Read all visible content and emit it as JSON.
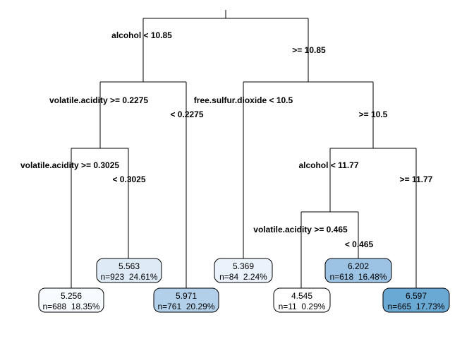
{
  "splits": {
    "root_left": "alcohol < 10.85",
    "root_right": ">= 10.85",
    "va1_left": "volatile.acidity >= 0.2275",
    "va1_right": "< 0.2275",
    "va2_left": "volatile.acidity >= 0.3025",
    "va2_right": "< 0.3025",
    "fsd_left": "free.sulfur.dioxide < 10.5",
    "fsd_right": ">= 10.5",
    "alc2_left": "alcohol < 11.77",
    "alc2_right": ">= 11.77",
    "va3_left": "volatile.acidity >= 0.465",
    "va3_right": "< 0.465"
  },
  "leaves": [
    {
      "id": "leaf-1",
      "value": "5.256",
      "stats": "n=688  18.35%",
      "mean": 5.256,
      "fill": "#f7fbff"
    },
    {
      "id": "leaf-2",
      "value": "5.563",
      "stats": "n=923  24.61%",
      "mean": 5.563,
      "fill": "#deebf7"
    },
    {
      "id": "leaf-3",
      "value": "5.971",
      "stats": "n=761  20.29%",
      "mean": 5.971,
      "fill": "#b3d0ea"
    },
    {
      "id": "leaf-4",
      "value": "5.369",
      "stats": "n=84  2.24%",
      "mean": 5.369,
      "fill": "#eaf2fb"
    },
    {
      "id": "leaf-5",
      "value": "4.545",
      "stats": "n=11  0.29%",
      "mean": 4.545,
      "fill": "#ffffff"
    },
    {
      "id": "leaf-6",
      "value": "6.202",
      "stats": "n=618  16.48%",
      "mean": 6.202,
      "fill": "#9cc3e4"
    },
    {
      "id": "leaf-7",
      "value": "6.597",
      "stats": "n=665  17.73%",
      "mean": 6.597,
      "fill": "#6ba9d5"
    }
  ]
}
